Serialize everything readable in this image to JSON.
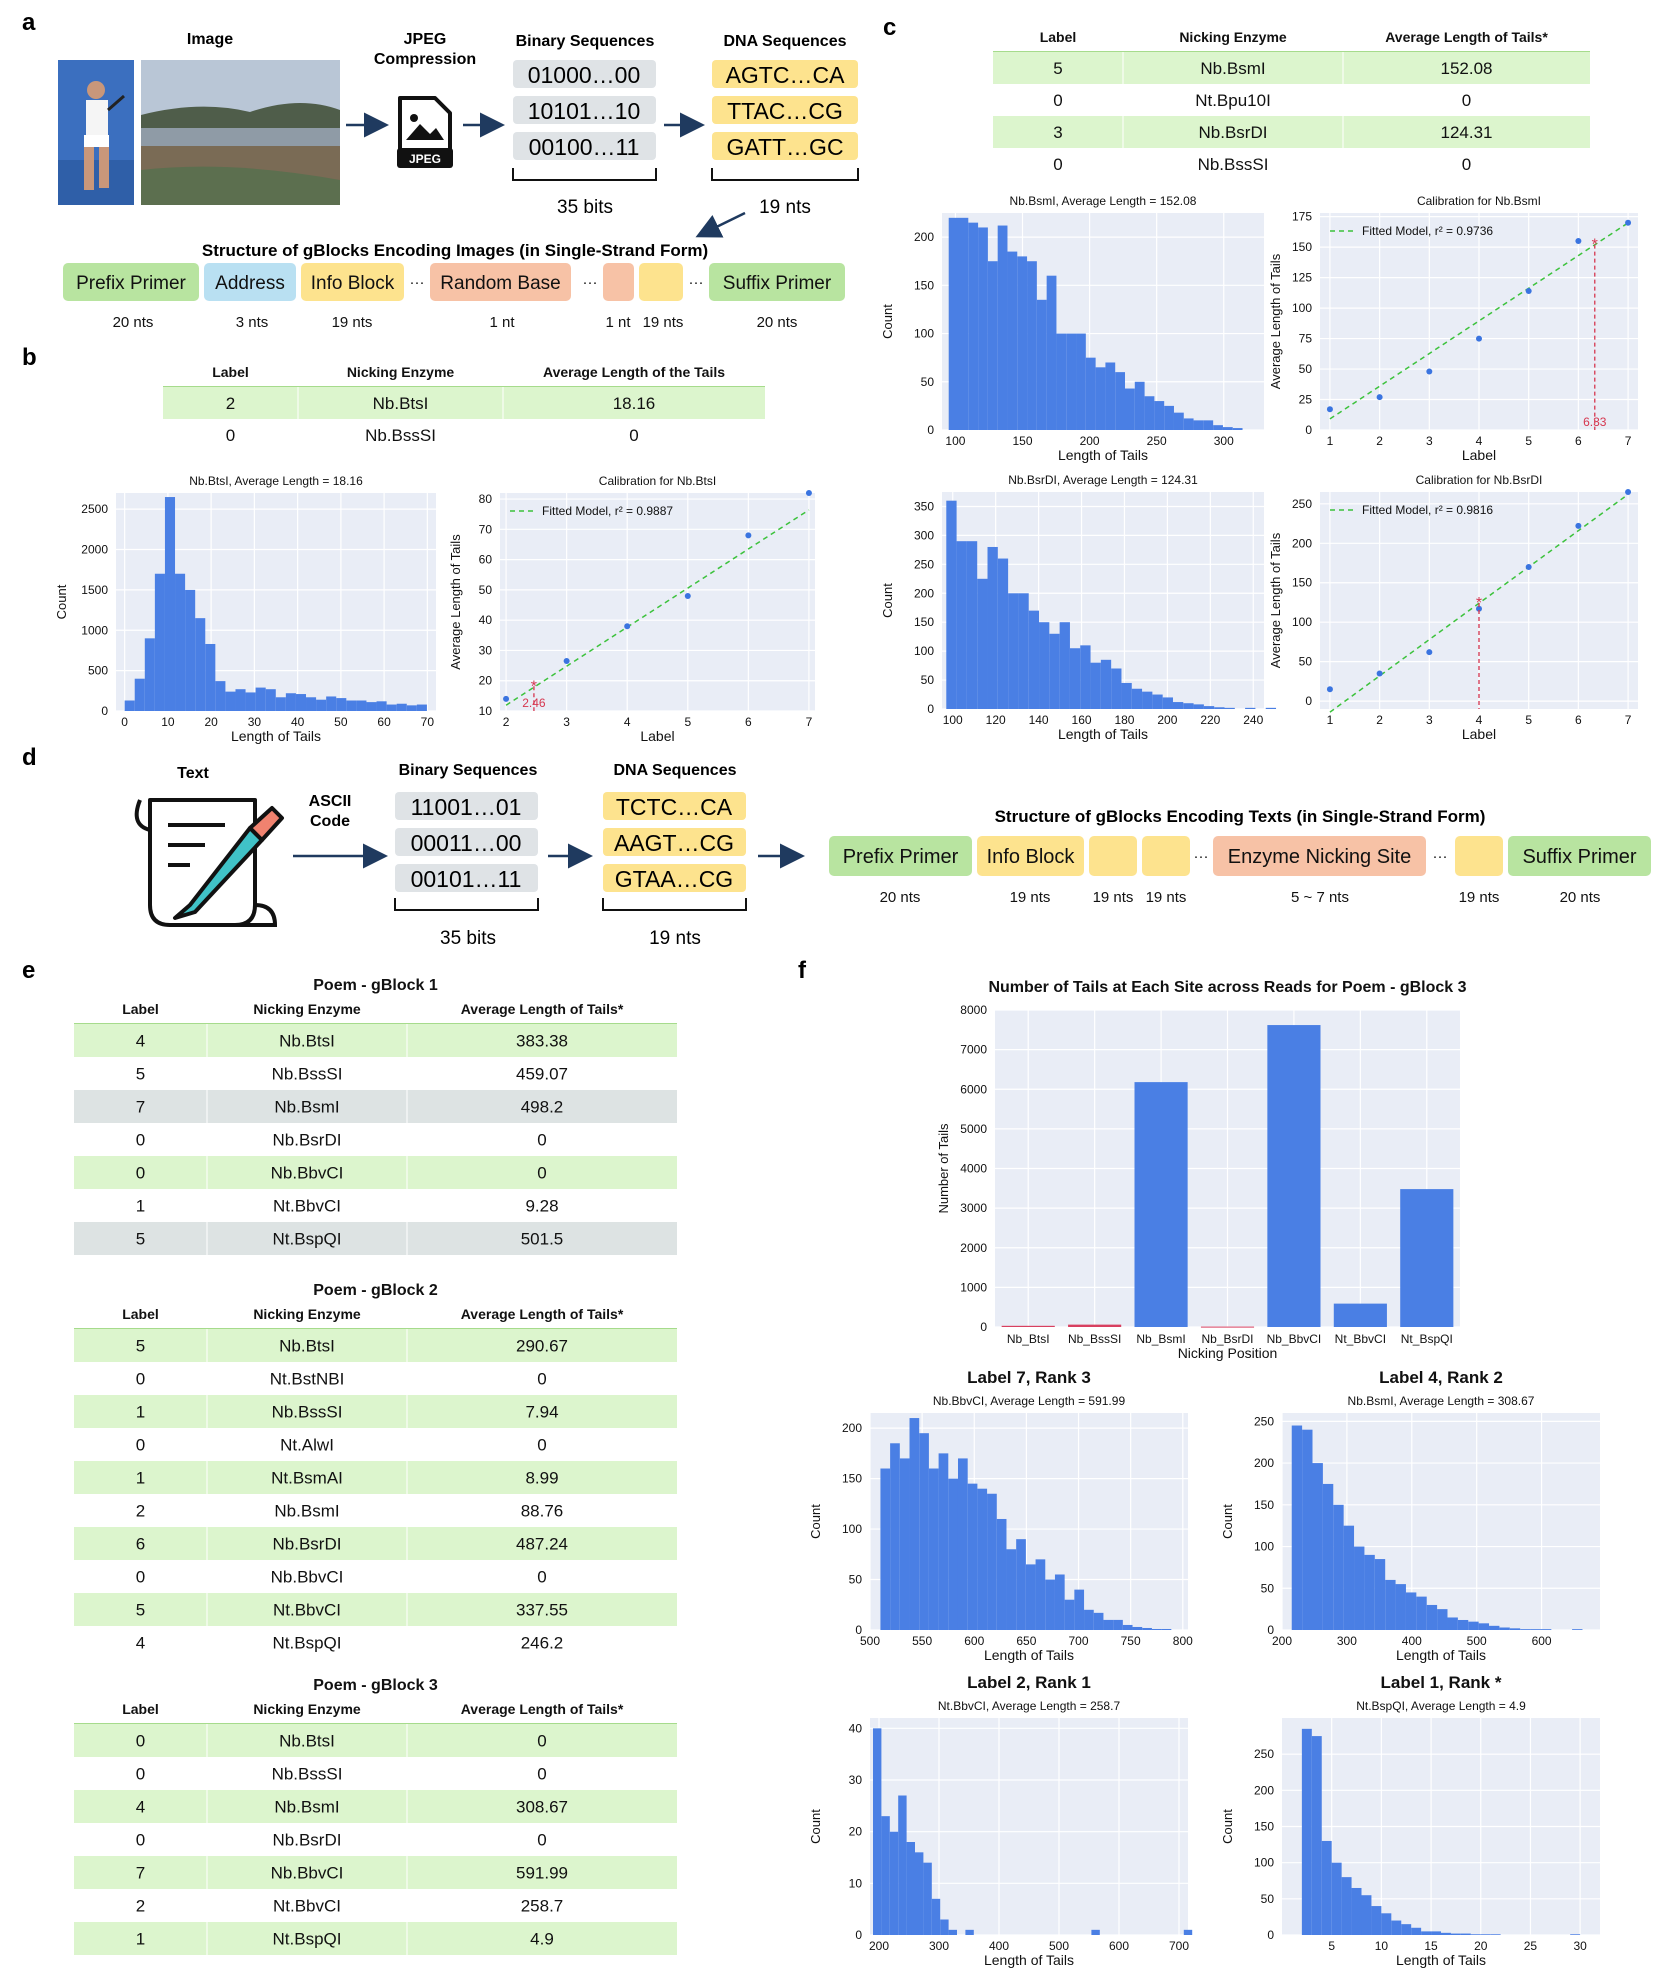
{
  "panel_letters": [
    "a",
    "b",
    "c",
    "d",
    "e",
    "f"
  ],
  "a": {
    "image_label": "Image",
    "jpeg_label": "JPEG\nCompression",
    "jpeg_icon_text": "JPEG",
    "binary_title": "Binary Sequences",
    "binary": [
      "01000…00",
      "10101…10",
      "00100…11"
    ],
    "binary_note": "35 bits",
    "dna_title": "DNA Sequences",
    "dna": [
      "AGTC…CA",
      "TTAC…CG",
      "GATT…GC"
    ],
    "dna_note": "19 nts",
    "structure_title": "Structure of gBlocks Encoding Images (in Single-Strand Form)",
    "blocks": [
      {
        "label": "Prefix Primer",
        "note": "20 nts",
        "color": "#b8e4a0"
      },
      {
        "label": "Address",
        "note": "3 nts",
        "color": "#b9e0f2"
      },
      {
        "label": "Info Block",
        "note": "19 nts",
        "color": "#fde38e"
      },
      {
        "label": "Random Base",
        "note": "1 nt",
        "color": "#f7c2a6"
      },
      {
        "label": "",
        "note": "1 nt",
        "color": "#f7c2a6"
      },
      {
        "label": "",
        "note": "19 nts",
        "color": "#fde38e"
      },
      {
        "label": "Suffix Primer",
        "note": "20 nts",
        "color": "#b8e4a0"
      }
    ]
  },
  "b": {
    "table": {
      "headers": [
        "Label",
        "Nicking Enzyme",
        "Average Length of the Tails"
      ],
      "rows": [
        [
          "2",
          "Nb.BtsI",
          "18.16"
        ],
        [
          "0",
          "Nb.BssSI",
          "0"
        ]
      ]
    },
    "hist": {
      "title": "Nb.BtsI, Average Length = 18.16",
      "xlabel": "Length of Tails",
      "ylabel": "Count"
    },
    "calib": {
      "title": "Calibration for Nb.BtsI",
      "xlabel": "Label",
      "ylabel": "Average Length of Tails",
      "legend": "Fitted Model, r² = 0.9887",
      "marker_label": "2.46"
    }
  },
  "c": {
    "table": {
      "headers": [
        "Label",
        "Nicking Enzyme",
        "Average Length of Tails*"
      ],
      "rows": [
        [
          "5",
          "Nb.BsmI",
          "152.08"
        ],
        [
          "0",
          "Nt.Bpu10I",
          "0"
        ],
        [
          "3",
          "Nb.BsrDI",
          "124.31"
        ],
        [
          "0",
          "Nb.BssSI",
          "0"
        ]
      ]
    },
    "hist1": {
      "title": "Nb.BsmI, Average Length = 152.08",
      "xlabel": "Length of Tails",
      "ylabel": "Count"
    },
    "calib1": {
      "title": "Calibration for Nb.BsmI",
      "xlabel": "Label",
      "ylabel": "Average Length of Tails",
      "legend": "Fitted Model, r² = 0.9736",
      "marker_label": "6.33"
    },
    "hist2": {
      "title": "Nb.BsrDI, Average Length = 124.31",
      "xlabel": "Length of Tails",
      "ylabel": "Count"
    },
    "calib2": {
      "title": "Calibration for Nb.BsrDI",
      "xlabel": "Label",
      "ylabel": "Average Length of Tails",
      "legend": "Fitted Model, r² = 0.9816"
    }
  },
  "d": {
    "text_label": "Text",
    "ascii_label": "ASCII\nCode",
    "binary_title": "Binary Sequences",
    "binary": [
      "11001…01",
      "00011…00",
      "00101…11"
    ],
    "binary_note": "35 bits",
    "dna_title": "DNA Sequences",
    "dna": [
      "TCTC…CA",
      "AAGT…CG",
      "GTAA…CG"
    ],
    "dna_note": "19 nts",
    "structure_title": "Structure of gBlocks Encoding Texts (in Single-Strand Form)",
    "blocks": [
      {
        "label": "Prefix Primer",
        "note": "20 nts",
        "color": "#b8e4a0"
      },
      {
        "label": "Info Block",
        "note": "19 nts",
        "color": "#fde38e"
      },
      {
        "label": "",
        "note": "19 nts",
        "color": "#fde38e"
      },
      {
        "label": "",
        "note": "19 nts",
        "color": "#fde38e"
      },
      {
        "label": "Enzyme Nicking Site",
        "note": "5 ~ 7 nts",
        "color": "#f7c2a6"
      },
      {
        "label": "",
        "note": "19 nts",
        "color": "#fde38e"
      },
      {
        "label": "Suffix Primer",
        "note": "20 nts",
        "color": "#b8e4a0"
      }
    ]
  },
  "e": {
    "headers": [
      "Label",
      "Nicking Enzyme",
      "Average Length of Tails*"
    ],
    "tables": [
      {
        "title": "Poem - gBlock 1",
        "rows": [
          [
            "4",
            "Nb.BtsI",
            "383.38"
          ],
          [
            "5",
            "Nb.BssSI",
            "459.07"
          ],
          [
            "7",
            "Nb.BsmI",
            "498.2"
          ],
          [
            "0",
            "Nb.BsrDI",
            "0"
          ],
          [
            "0",
            "Nb.BbvCI",
            "0"
          ],
          [
            "1",
            "Nt.BbvCI",
            "9.28"
          ],
          [
            "5",
            "Nt.BspQI",
            "501.5"
          ]
        ]
      },
      {
        "title": "Poem - gBlock 2",
        "rows": [
          [
            "5",
            "Nb.BtsI",
            "290.67"
          ],
          [
            "0",
            "Nt.BstNBI",
            "0"
          ],
          [
            "1",
            "Nb.BssSI",
            "7.94"
          ],
          [
            "0",
            "Nt.AlwI",
            "0"
          ],
          [
            "1",
            "Nt.BsmAI",
            "8.99"
          ],
          [
            "2",
            "Nb.BsmI",
            "88.76"
          ],
          [
            "6",
            "Nb.BsrDI",
            "487.24"
          ],
          [
            "0",
            "Nb.BbvCI",
            "0"
          ],
          [
            "5",
            "Nt.BbvCI",
            "337.55"
          ],
          [
            "4",
            "Nt.BspQI",
            "246.2"
          ]
        ]
      },
      {
        "title": "Poem - gBlock 3",
        "rows": [
          [
            "0",
            "Nb.BtsI",
            "0"
          ],
          [
            "0",
            "Nb.BssSI",
            "0"
          ],
          [
            "4",
            "Nb.BsmI",
            "308.67"
          ],
          [
            "0",
            "Nb.BsrDI",
            "0"
          ],
          [
            "7",
            "Nb.BbvCI",
            "591.99"
          ],
          [
            "2",
            "Nt.BbvCI",
            "258.7"
          ],
          [
            "1",
            "Nt.BspQI",
            "4.9"
          ]
        ]
      }
    ]
  },
  "f": {
    "bar": {
      "title": "Number of Tails at Each Site across Reads for Poem - gBlock 3",
      "xlabel": "Nicking Position",
      "ylabel": "Number of Tails"
    },
    "h1": {
      "head": "Label 7, Rank 3",
      "title": "Nb.BbvCI, Average Length = 591.99",
      "xlabel": "Length of Tails",
      "ylabel": "Count"
    },
    "h2": {
      "head": "Label 4, Rank 2",
      "title": "Nb.BsmI, Average Length = 308.67",
      "xlabel": "Length of Tails",
      "ylabel": "Count"
    },
    "h3": {
      "head": "Label 2, Rank 1",
      "title": "Nt.BbvCI, Average Length = 258.7",
      "xlabel": "Length of Tails",
      "ylabel": "Count"
    },
    "h4": {
      "head": "Label 1, Rank *",
      "title": "Nt.BspQI, Average Length = 4.9",
      "xlabel": "Length of Tails",
      "ylabel": "Count"
    }
  },
  "chart_data": [
    {
      "id": "b_hist",
      "type": "bar",
      "title": "Nb.BtsI, Average Length = 18.16",
      "xlabel": "Length of Tails",
      "ylabel": "Count",
      "xlim": [
        -2,
        72
      ],
      "ylim": [
        0,
        2700
      ],
      "xticks": [
        0,
        10,
        20,
        30,
        40,
        50,
        60,
        70
      ],
      "yticks": [
        0,
        500,
        1000,
        1500,
        2000,
        2500
      ],
      "bin_start": 0,
      "bin_width": 2.33,
      "values": [
        130,
        400,
        900,
        1700,
        2650,
        1700,
        1500,
        1150,
        830,
        370,
        240,
        270,
        230,
        290,
        270,
        170,
        220,
        210,
        170,
        140,
        180,
        160,
        130,
        130,
        110,
        120,
        80,
        90,
        70,
        80
      ]
    },
    {
      "id": "b_calib",
      "type": "scatter",
      "title": "Calibration for Nb.BtsI",
      "xlabel": "Label",
      "ylabel": "Average Length of Tails",
      "xlim": [
        1.9,
        7.1
      ],
      "ylim": [
        10,
        82
      ],
      "xticks": [
        2,
        3,
        4,
        5,
        6,
        7
      ],
      "yticks": [
        10,
        20,
        30,
        40,
        50,
        60,
        70,
        80
      ],
      "points": [
        [
          2,
          14
        ],
        [
          3,
          26.5
        ],
        [
          4,
          38
        ],
        [
          5,
          48
        ],
        [
          6,
          68
        ],
        [
          7,
          82
        ]
      ],
      "fit": {
        "slope": 12.9,
        "intercept": -13.9
      },
      "marker": {
        "x": 2.46,
        "y": 18.16
      }
    },
    {
      "id": "c_hist1",
      "type": "bar",
      "title": "Nb.BsmI, Average Length = 152.08",
      "xlabel": "Length of Tails",
      "ylabel": "Count",
      "xlim": [
        90,
        330
      ],
      "ylim": [
        0,
        225
      ],
      "xticks": [
        100,
        150,
        200,
        250,
        300
      ],
      "yticks": [
        0,
        50,
        100,
        150,
        200
      ],
      "bin_start": 95,
      "bin_width": 7.3,
      "values": [
        220,
        220,
        215,
        210,
        175,
        212,
        185,
        180,
        175,
        135,
        160,
        100,
        100,
        100,
        75,
        65,
        70,
        60,
        43,
        50,
        35,
        30,
        25,
        18,
        12,
        10,
        10,
        5,
        3,
        2
      ]
    },
    {
      "id": "c_calib1",
      "type": "scatter",
      "title": "Calibration for Nb.BsmI",
      "xlabel": "Label",
      "ylabel": "Average Length of Tails",
      "xlim": [
        0.8,
        7.2
      ],
      "ylim": [
        0,
        178
      ],
      "xticks": [
        1,
        2,
        3,
        4,
        5,
        6,
        7
      ],
      "yticks": [
        0,
        25,
        50,
        75,
        100,
        125,
        150,
        175
      ],
      "points": [
        [
          1,
          17
        ],
        [
          2,
          27
        ],
        [
          3,
          48
        ],
        [
          4,
          75
        ],
        [
          5,
          114
        ],
        [
          6,
          155
        ],
        [
          7,
          170
        ]
      ],
      "fit": {
        "slope": 26.8,
        "intercept": -17.7
      },
      "marker": {
        "x": 6.33,
        "y": 152.08
      }
    },
    {
      "id": "c_hist2",
      "type": "bar",
      "title": "Nb.BsrDI, Average Length = 124.31",
      "xlabel": "Length of Tails",
      "ylabel": "Count",
      "xlim": [
        95,
        245
      ],
      "ylim": [
        0,
        375
      ],
      "xticks": [
        100,
        120,
        140,
        160,
        180,
        200,
        220,
        240
      ],
      "yticks": [
        0,
        50,
        100,
        150,
        200,
        250,
        300,
        350
      ],
      "bin_start": 97,
      "bin_width": 4.8,
      "values": [
        360,
        290,
        290,
        225,
        280,
        260,
        200,
        200,
        170,
        150,
        130,
        150,
        105,
        110,
        80,
        85,
        70,
        45,
        35,
        30,
        25,
        20,
        12,
        10,
        8,
        5,
        3,
        2,
        0,
        2,
        0,
        2
      ]
    },
    {
      "id": "c_calib2",
      "type": "scatter",
      "title": "Calibration for Nb.BsrDI",
      "xlabel": "Label",
      "ylabel": "Average Length of Tails",
      "xlim": [
        0.8,
        7.2
      ],
      "ylim": [
        -10,
        265
      ],
      "xticks": [
        1,
        2,
        3,
        4,
        5,
        6,
        7
      ],
      "yticks": [
        0,
        50,
        100,
        150,
        200,
        250
      ],
      "points": [
        [
          1,
          15
        ],
        [
          2,
          35
        ],
        [
          3,
          62
        ],
        [
          4,
          117
        ],
        [
          5,
          170
        ],
        [
          6,
          222
        ],
        [
          7,
          265
        ]
      ],
      "fit": {
        "slope": 46,
        "intercept": -60
      },
      "marker": {
        "x": 4,
        "y": 124.31
      }
    },
    {
      "id": "f_bar",
      "type": "bar",
      "title": "Number of Tails at Each Site across Reads for Poem - gBlock 3",
      "xlabel": "Nicking Position",
      "ylabel": "Number of Tails",
      "ylim": [
        0,
        8000
      ],
      "yticks": [
        0,
        1000,
        2000,
        3000,
        4000,
        5000,
        6000,
        7000,
        8000
      ],
      "categories": [
        "Nb_BtsI",
        "Nb_BssSI",
        "Nb_BsmI",
        "Nb_BsrDI",
        "Nb_BbvCI",
        "Nt_BbvCI",
        "Nt_BspQI"
      ],
      "values": [
        30,
        60,
        6180,
        10,
        7620,
        590,
        3480
      ]
    },
    {
      "id": "f_h1",
      "type": "bar",
      "title": "Nb.BbvCI, Average Length = 591.99",
      "xlabel": "Length of Tails",
      "ylabel": "Count",
      "xlim": [
        500,
        805
      ],
      "ylim": [
        0,
        215
      ],
      "xticks": [
        500,
        550,
        600,
        650,
        700,
        750,
        800
      ],
      "yticks": [
        0,
        50,
        100,
        150,
        200
      ],
      "bin_start": 510,
      "bin_width": 9.3,
      "values": [
        160,
        185,
        170,
        210,
        195,
        160,
        175,
        150,
        170,
        145,
        140,
        135,
        110,
        80,
        90,
        65,
        70,
        50,
        55,
        30,
        40,
        20,
        17,
        10,
        10,
        5,
        3,
        2,
        1,
        1
      ]
    },
    {
      "id": "f_h2",
      "type": "bar",
      "title": "Nb.BsmI, Average Length = 308.67",
      "xlabel": "Length of Tails",
      "ylabel": "Count",
      "xlim": [
        200,
        690
      ],
      "ylim": [
        0,
        260
      ],
      "xticks": [
        200,
        300,
        400,
        500,
        600
      ],
      "yticks": [
        0,
        50,
        100,
        150,
        200,
        250
      ],
      "bin_start": 215,
      "bin_width": 16,
      "values": [
        245,
        240,
        200,
        175,
        150,
        125,
        100,
        90,
        85,
        60,
        55,
        45,
        40,
        30,
        25,
        15,
        12,
        10,
        8,
        5,
        3,
        2,
        1,
        1,
        1,
        0,
        0,
        1
      ]
    },
    {
      "id": "f_h3",
      "type": "bar",
      "title": "Nt.BbvCI, Average Length = 258.7",
      "xlabel": "Length of Tails",
      "ylabel": "Count",
      "xlim": [
        185,
        715
      ],
      "ylim": [
        0,
        42
      ],
      "xticks": [
        200,
        300,
        400,
        500,
        600,
        700
      ],
      "yticks": [
        0,
        10,
        20,
        30,
        40
      ],
      "bin_start": 190,
      "bin_width": 14,
      "values": [
        40,
        23,
        20,
        27,
        18,
        16,
        14,
        7,
        3,
        1,
        0,
        1,
        0,
        0,
        0,
        0,
        0,
        0,
        0,
        0,
        0,
        0,
        0,
        0,
        0,
        0,
        1,
        0,
        0,
        0,
        0,
        0,
        0,
        0,
        0,
        0,
        0,
        1
      ]
    },
    {
      "id": "f_h4",
      "type": "bar",
      "title": "Nt.BspQI, Average Length = 4.9",
      "xlabel": "Length of Tails",
      "ylabel": "Count",
      "xlim": [
        0,
        32
      ],
      "ylim": [
        0,
        300
      ],
      "xticks": [
        5,
        10,
        15,
        20,
        25,
        30
      ],
      "yticks": [
        0,
        50,
        100,
        150,
        200,
        250
      ],
      "bin_start": 2,
      "bin_width": 1,
      "values": [
        285,
        275,
        130,
        100,
        80,
        65,
        55,
        40,
        30,
        20,
        15,
        10,
        5,
        5,
        3,
        2,
        2,
        1,
        1,
        1,
        0,
        0,
        0,
        0,
        0,
        0,
        0,
        1
      ]
    }
  ]
}
